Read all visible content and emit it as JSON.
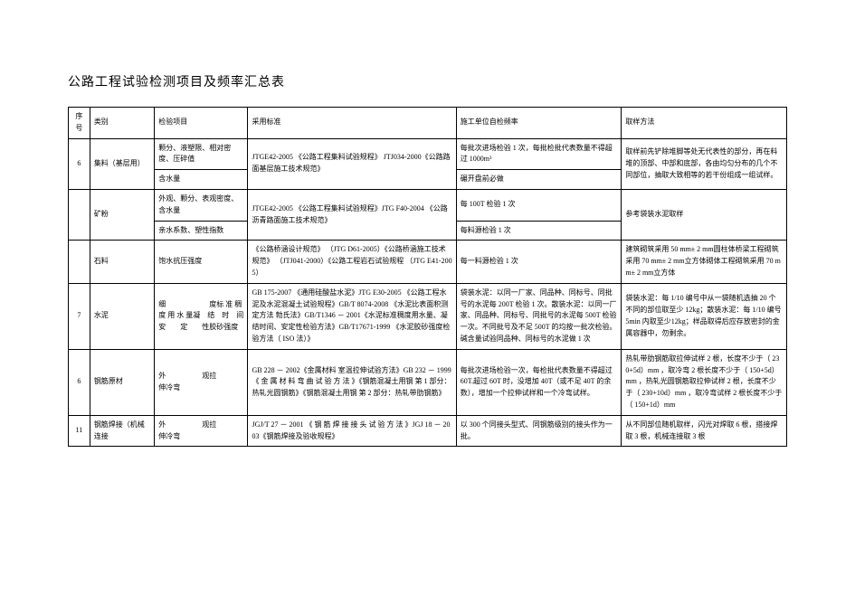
{
  "title": "公路工程试验检测项目及频率汇总表",
  "header": {
    "seq": "序号",
    "category": "类别",
    "item": "检验项目",
    "standard": "采用标准",
    "frequency": "施工单位自检频率",
    "method": "取样方法"
  },
  "rows": {
    "r1": {
      "seq": "6",
      "category": "集料（基层用）",
      "item1": "颗分、液塑限、相对密度、压碎值",
      "item2": "含水量",
      "standard": "JTGE42-2005 《公路工程集料试验规程》 JTJ034-2000《公路路面基层施工技术规范》",
      "freq1": "每批次进场检验 1 次，每批检批代表数量不得超过 1000m³",
      "freq2": "碾开盘前必做",
      "method": "取样前先铲除堆脚等处无代表性的部分，再在料堆的顶部、中部和底部，各由均匀分布的几个不同部位，抽取大致相等的若干份组成一组试样。"
    },
    "r2": {
      "category": "矿粉",
      "item1": "外观、颗分、表观密度、含水量",
      "item2": "亲水系数、塑性指数",
      "standard": "JTGE42-2005 《公路工程集料试验规程》JTG F40-2004 《公路沥青路面施工技术规范》",
      "freq1": "每 100T 检验 1 次",
      "freq2": "每料源检验 1 次",
      "method": "参考袋装水泥取样"
    },
    "r3": {
      "category": "石料",
      "item": "饱水抗压强度",
      "standard": "《公路桥涵设计规范》 （JTG D61-2005）《公路桥涵施工技术规范》 （JTJ041-2000）《公路工程岩石试验规程 （JTG E41-2005）",
      "freq": "每一料源检验 1 次",
      "method": "建筑砌筑采用 50 mm± 2 mm圆柱体桥梁工程砌筑采用 70 mm± 2 mm立方体砌体工程砌筑采用 70 mm± 2 mm立方体"
    },
    "r4": {
      "seq": "7",
      "category": "水泥",
      "item": "细　　　　　　度标 准 稠 度 用 水 量凝　结　时　间安　　定　　性胶砂强度",
      "standard": "GB 175-2007 《通用硅酸盐水泥》JTG E30-2005 《公路工程水泥及水泥混凝土试验规程》GB/T 8074-2008 《水泥比表面积测定方法 勃氏法》GB/T1346 － 2001《水泥标准稠度用水量、凝结时间、安定性检验方法》GB/T17671-1999 《水泥胶砂强度检验方法（ ISO 法）》",
      "freq": "袋装水泥：以同一厂家、同品种、同标号、同批号的水泥每 200T 检验 1 次。散装水泥：以同一厂家、同品种、同标号、同批号的水泥每 500T 检验一次。不同批号及不足 500T 的均按一批次检验。碱含量试验同品种、同标号的水泥做 1 次",
      "method": "袋装水泥：每 1/10 编号中从一袋随机选抽 20 个不同的部位取至少 12kg；散装水泥：每 1/10 编号 5min 内取至少12kg；样品取得后应存放密封的金属容器中，勿剩余。"
    },
    "r5": {
      "seq": "6",
      "category": "钢筋原材",
      "item": "外　　　　　观拉　　　　　伸冷弯",
      "standard": "GB 228 － 2002《金属材料 室温拉伸试验方法》GB 232 － 1999《 金 属 材 料 弯 曲 试 验 方 法 》《钢筋混凝土用钢 第 1 部分：热轧光圆钢筋》《钢筋混凝土用钢 第 2 部分：热轧带肋钢筋》",
      "freq": "每批次进场检验一次，每检批代表数量不得超过 60T.超过 60T 时，没增加 40T（或不足 40T 的余数），增加一个拉伸试样和一个冷弯试样。",
      "method": "热轧带肋钢筋取拉伸试样 2 根，长度不少于（ 230+5d）mm ，取冷弯 2 根长度不少于（ 150+5d）mm ，热轧光圆钢筋取拉伸试样 2 根，长度不少于（ 230+10d）mm ，取冷弯试样 2 根长度不少于（ 150+1d）mm"
    },
    "r6": {
      "seq": "11",
      "category": "钢筋焊接（机械连接",
      "item": "外　　　　　观拉　　　　　伸冷弯",
      "standard": "JGJ/T 27 － 2001 《 钢 筋 焊 接 接 头 试 验 方 法 》JGJ 18 － 2003《钢筋焊接及验收规程》",
      "freq": "以 300 个同接头型式、同钢筋级别的接头作为一批。",
      "method": "从不同部位随机取样，闪光对焊取 6 根，搭接焊取 3 根，机械连接取 3 根"
    }
  }
}
